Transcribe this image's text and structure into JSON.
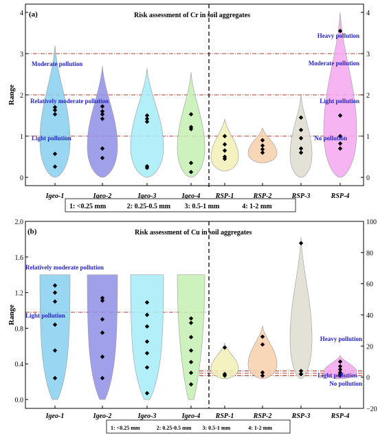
{
  "chart_data": [
    {
      "type": "violin",
      "panel_label": "(a)",
      "title": "Risk assessment of Cr in soil aggregates",
      "ylabel": "Range",
      "ylim": [
        -0.2,
        4.2
      ],
      "yticks": [
        "0",
        "1",
        "2",
        "3",
        "4"
      ],
      "y2lim": [
        -0.2,
        4.2
      ],
      "y2ticks": [
        "0",
        "1",
        "2",
        "3",
        "4"
      ],
      "categories": [
        "Igeo-1",
        "Igeo-2",
        "Igeo-3",
        "Igeo-4",
        "RSP-1",
        "RSP-2",
        "RSP-3",
        "RSP-4"
      ],
      "series": [
        {
          "color": "#87cfee",
          "violin_range": [
            0,
            3.2
          ],
          "points": [
            1.7,
            1.63,
            1.53,
            0.57,
            0.26
          ]
        },
        {
          "color": "#8f8fe6",
          "violin_range": [
            0,
            2.7
          ],
          "points": [
            1.72,
            1.6,
            1.53,
            1.42,
            0.7,
            0.47
          ]
        },
        {
          "color": "#a6ecf7",
          "violin_range": [
            0,
            2.65
          ],
          "points": [
            1.5,
            1.42,
            1.35,
            0.27,
            0.23
          ]
        },
        {
          "color": "#c5f0b1",
          "violin_range": [
            0,
            2.55
          ],
          "points": [
            1.53,
            1.22,
            1.17,
            0.35,
            0.13
          ]
        },
        {
          "color": "#f1f0b5",
          "violin_range": [
            0.15,
            1.42
          ],
          "points": [
            1.0,
            0.8,
            0.65,
            0.5,
            0.45
          ]
        },
        {
          "color": "#f7d0ad",
          "violin_range": [
            0.35,
            1.2
          ],
          "points": [
            0.9,
            0.77,
            0.68,
            0.6
          ]
        },
        {
          "color": "#dfddd0",
          "violin_range": [
            0,
            2.0
          ],
          "points": [
            1.45,
            1.15,
            0.95,
            0.7,
            0.6
          ]
        },
        {
          "color": "#f5a8f0",
          "violin_range": [
            0,
            4.0
          ],
          "points": [
            3.55,
            1.5,
            1.0,
            0.82,
            0.7
          ]
        }
      ],
      "reference_lines": [
        {
          "value": 3.0,
          "color": "#b03a2e"
        },
        {
          "value": 2.0,
          "color": "#b03a2e"
        },
        {
          "value": 1.0,
          "color": "#b03a2e"
        }
      ],
      "annotations": [
        "Moderate pollution",
        "Relatively moderate pollution",
        "Light pollution",
        "Heavy pollution",
        "Moderate pollution",
        "Light pollution",
        "No pollution"
      ],
      "legend": [
        "1: <0.25 mm",
        "2: 0.25-0.5 mm",
        "3: 0.5-1 mm",
        "4: 1-2 mm"
      ]
    },
    {
      "type": "violin",
      "panel_label": "(b)",
      "title": "Risk assessment of Cu in soil aggregates",
      "ylabel": "Range",
      "ylim": [
        -0.1,
        2.0
      ],
      "yticks": [
        "0.0",
        "0.4",
        "0.8",
        "1.2",
        "1.6",
        "2.0"
      ],
      "y2lim": [
        -20,
        100
      ],
      "y2ticks": [
        "−20",
        "0",
        "20",
        "40",
        "60",
        "80",
        "100"
      ],
      "categories": [
        "Igeo-1",
        "Igeo-2",
        "Igeo-3",
        "Igeo-4",
        "RSP-1",
        "RSP-2",
        "RSP-3",
        "RSP-4"
      ],
      "series": [
        {
          "color": "#87cfee",
          "violin_range": [
            0,
            1.4
          ],
          "points": [
            1.28,
            1.2,
            1.1,
            0.84,
            0.55,
            0.24
          ]
        },
        {
          "color": "#8f8fe6",
          "violin_range": [
            0,
            1.4
          ],
          "points": [
            1.14,
            1.11,
            0.9,
            0.75,
            0.48,
            0.24
          ]
        },
        {
          "color": "#a6ecf7",
          "violin_range": [
            0,
            1.4
          ],
          "points": [
            1.09,
            0.95,
            0.82,
            0.65,
            0.52,
            0.36,
            0.07
          ]
        },
        {
          "color": "#c5f0b1",
          "violin_range": [
            0,
            1.4
          ],
          "points": [
            0.91,
            0.86,
            0.7,
            0.55,
            0.42,
            0.3,
            0.17
          ]
        },
        {
          "color": "#f1f0b5",
          "violin_range": [
            -1,
            22
          ],
          "points": [
            19,
            2,
            1,
            1
          ]
        },
        {
          "color": "#f7d0ad",
          "violin_range": [
            -1,
            33
          ],
          "points": [
            26,
            21,
            3,
            1,
            1
          ]
        },
        {
          "color": "#dfddd0",
          "violin_range": [
            -1,
            90
          ],
          "points": [
            86,
            4,
            2,
            2
          ]
        },
        {
          "color": "#f5a8f0",
          "violin_range": [
            -1,
            14
          ],
          "points": [
            10,
            7,
            5,
            3,
            2,
            1
          ]
        }
      ],
      "reference_lines": [
        {
          "value": 0.98,
          "color": "#b03a2e"
        },
        {
          "value": 4,
          "color": "#b03a2e"
        },
        {
          "value": 2.5,
          "color": "#b03a2e"
        },
        {
          "value": 1,
          "color": "#b03a2e"
        }
      ],
      "annotations": [
        "Relatively moderate pollution",
        "Light pollution",
        "Heavy pollution",
        "Light pollution",
        "No pollution"
      ],
      "legend": [
        "1: <0.25 mm",
        "2: 0.25-0.5 mm",
        "3: 0.5-1 mm",
        "4: 1-2 mm"
      ]
    }
  ]
}
